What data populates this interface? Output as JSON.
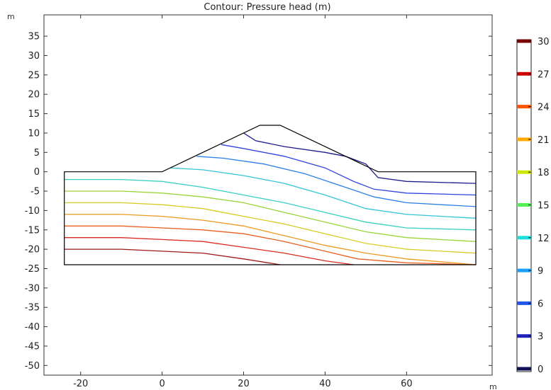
{
  "chart_data": {
    "type": "contour",
    "title": "Contour: Pressure head (m)",
    "x_unit": "m",
    "y_unit": "m",
    "xlim": [
      -29,
      81
    ],
    "ylim": [
      -52.5,
      40.5
    ],
    "x_ticks": [
      -20,
      0,
      20,
      40,
      60
    ],
    "y_ticks": [
      35,
      30,
      25,
      20,
      15,
      10,
      5,
      0,
      -5,
      -10,
      -15,
      -20,
      -25,
      -30,
      -35,
      -40,
      -45,
      -50
    ],
    "geometry": {
      "outline": [
        [
          -24,
          0
        ],
        [
          0,
          0
        ],
        [
          24,
          12
        ],
        [
          29,
          12
        ],
        [
          53,
          0
        ],
        [
          77,
          0
        ],
        [
          77,
          -24
        ],
        [
          -24,
          -24
        ]
      ]
    },
    "colorbar": {
      "ticks": [
        30,
        27,
        24,
        21,
        18,
        15,
        12,
        9,
        6,
        3,
        0
      ],
      "levels": [
        {
          "value": 30,
          "color": "#7a0000"
        },
        {
          "value": 27,
          "color": "#cc0000"
        },
        {
          "value": 24,
          "color": "#ff5500"
        },
        {
          "value": 21,
          "color": "#ffaa00"
        },
        {
          "value": 18,
          "color": "#cce600"
        },
        {
          "value": 15,
          "color": "#55ee55"
        },
        {
          "value": 12,
          "color": "#22dddd"
        },
        {
          "value": 9,
          "color": "#1e9fff"
        },
        {
          "value": 6,
          "color": "#2255ee"
        },
        {
          "value": 3,
          "color": "#2222bb"
        },
        {
          "value": 0,
          "color": "#111155"
        }
      ]
    },
    "contours": [
      {
        "level": 3,
        "color": "#1d1a8a",
        "points": [
          [
            20,
            10
          ],
          [
            23,
            8
          ],
          [
            30,
            6.5
          ],
          [
            40,
            5
          ],
          [
            45,
            4
          ],
          [
            50,
            2
          ],
          [
            53,
            -1.5
          ],
          [
            60,
            -2.5
          ],
          [
            77,
            -3
          ]
        ]
      },
      {
        "level": 6,
        "color": "#2e44e0",
        "points": [
          [
            14.5,
            7
          ],
          [
            20,
            6
          ],
          [
            30,
            4
          ],
          [
            40,
            1
          ],
          [
            47,
            -2.5
          ],
          [
            52,
            -4.5
          ],
          [
            60,
            -5.5
          ],
          [
            77,
            -6
          ]
        ]
      },
      {
        "level": 9,
        "color": "#2a7ee8",
        "points": [
          [
            8.5,
            4
          ],
          [
            15,
            3.5
          ],
          [
            25,
            2
          ],
          [
            35,
            -0.5
          ],
          [
            45,
            -4
          ],
          [
            52,
            -6.5
          ],
          [
            60,
            -8
          ],
          [
            77,
            -9
          ]
        ]
      },
      {
        "level": 12,
        "color": "#33c4d8",
        "points": [
          [
            2,
            1
          ],
          [
            10,
            0.5
          ],
          [
            20,
            -1
          ],
          [
            30,
            -3
          ],
          [
            40,
            -6
          ],
          [
            50,
            -9.5
          ],
          [
            60,
            -11
          ],
          [
            77,
            -12
          ]
        ]
      },
      {
        "level": 13.5,
        "color": "#38d0c0",
        "points": [
          [
            -24,
            -2
          ],
          [
            -10,
            -2
          ],
          [
            0,
            -2.5
          ],
          [
            10,
            -4
          ],
          [
            20,
            -6
          ],
          [
            30,
            -8
          ],
          [
            40,
            -10.5
          ],
          [
            50,
            -13
          ],
          [
            60,
            -14.5
          ],
          [
            77,
            -15
          ]
        ]
      },
      {
        "level": 16.5,
        "color": "#9ad43a",
        "points": [
          [
            -24,
            -5
          ],
          [
            -10,
            -5
          ],
          [
            0,
            -5.5
          ],
          [
            10,
            -6.5
          ],
          [
            20,
            -8
          ],
          [
            30,
            -10.5
          ],
          [
            40,
            -13
          ],
          [
            50,
            -15.5
          ],
          [
            60,
            -17
          ],
          [
            77,
            -18
          ]
        ]
      },
      {
        "level": 19.5,
        "color": "#d6cc22",
        "points": [
          [
            -24,
            -8
          ],
          [
            -10,
            -8
          ],
          [
            0,
            -8.5
          ],
          [
            10,
            -9.5
          ],
          [
            20,
            -11.5
          ],
          [
            30,
            -13.5
          ],
          [
            40,
            -16
          ],
          [
            50,
            -18.5
          ],
          [
            60,
            -20
          ],
          [
            77,
            -21
          ]
        ]
      },
      {
        "level": 22.5,
        "color": "#ee9920",
        "points": [
          [
            -24,
            -11
          ],
          [
            -10,
            -11
          ],
          [
            0,
            -11.5
          ],
          [
            10,
            -12.5
          ],
          [
            20,
            -14
          ],
          [
            30,
            -16.5
          ],
          [
            40,
            -19
          ],
          [
            50,
            -21
          ],
          [
            60,
            -22.5
          ],
          [
            77,
            -24
          ]
        ]
      },
      {
        "level": 24.5,
        "color": "#e86020",
        "points": [
          [
            -24,
            -14
          ],
          [
            -10,
            -14
          ],
          [
            0,
            -14.5
          ],
          [
            10,
            -15
          ],
          [
            20,
            -16
          ],
          [
            30,
            -18
          ],
          [
            40,
            -20.5
          ],
          [
            48,
            -22.5
          ],
          [
            60,
            -23.5
          ],
          [
            77,
            -24
          ]
        ]
      },
      {
        "level": 26.5,
        "color": "#dd2a20",
        "points": [
          [
            -24,
            -17
          ],
          [
            -10,
            -17
          ],
          [
            0,
            -17.5
          ],
          [
            10,
            -18
          ],
          [
            20,
            -19.5
          ],
          [
            30,
            -21
          ],
          [
            40,
            -23
          ],
          [
            47,
            -24
          ]
        ]
      },
      {
        "level": 29,
        "color": "#a01818",
        "points": [
          [
            -24,
            -20
          ],
          [
            -10,
            -20
          ],
          [
            0,
            -20.5
          ],
          [
            10,
            -21
          ],
          [
            20,
            -22.5
          ],
          [
            29,
            -24
          ]
        ]
      }
    ]
  }
}
